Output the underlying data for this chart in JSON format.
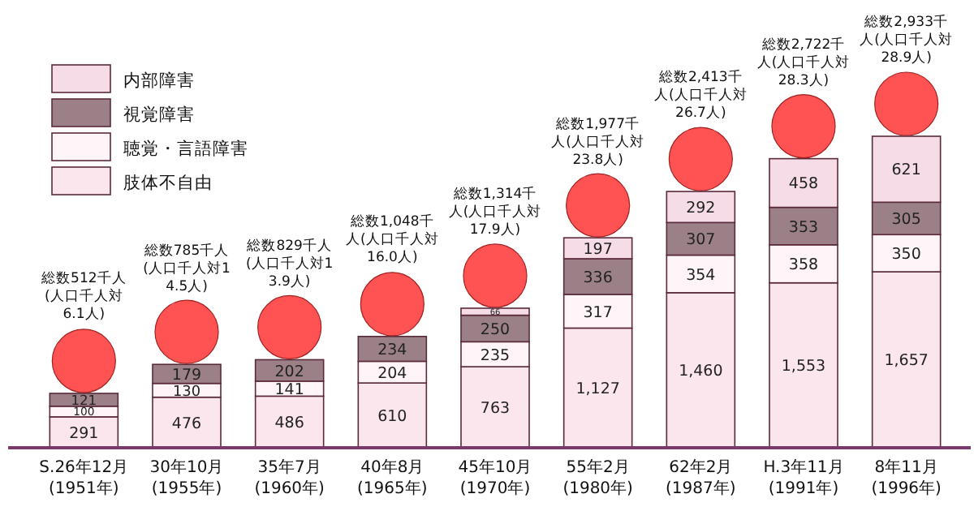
{
  "chart_data": {
    "type": "bar",
    "stacked": true,
    "legend": "top left",
    "categories": [
      "S.26年12月\n(1951年)",
      "30年10月\n(1955年)",
      "35年7月\n(1960年)",
      "40年8月\n(1965年)",
      "45年10月\n(1970年)",
      "55年2月\n(1980年)",
      "62年2月\n(1987年)",
      "H.3年11月\n(1991年)",
      "8年11月\n(1996年)"
    ],
    "series": [
      {
        "name": "肢体不自由",
        "color": "#fbe6ee",
        "values": [
          291,
          476,
          486,
          610,
          763,
          1127,
          1460,
          1553,
          1657
        ],
        "value_labels": [
          "291",
          "476",
          "486",
          "610",
          "763",
          "1,127",
          "1,460",
          "1,553",
          "1,657"
        ]
      },
      {
        "name": "聴覚・言語障害",
        "color": "#fff4f7",
        "values": [
          100,
          130,
          141,
          204,
          235,
          317,
          354,
          358,
          350
        ],
        "value_labels": [
          "100",
          "130",
          "141",
          "204",
          "235",
          "317",
          "354",
          "358",
          "350"
        ]
      },
      {
        "name": "視覚障害",
        "color": "#9c8088",
        "values": [
          121,
          179,
          202,
          234,
          250,
          336,
          307,
          353,
          305
        ],
        "value_labels": [
          "121",
          "179",
          "202",
          "234",
          "250",
          "336",
          "307",
          "353",
          "305"
        ]
      },
      {
        "name": "内部障害",
        "color": "#f6dce6",
        "values": [
          null,
          null,
          null,
          null,
          66,
          197,
          292,
          458,
          621
        ],
        "value_labels": [
          null,
          null,
          null,
          null,
          "66",
          "197",
          "292",
          "458",
          "621"
        ]
      }
    ],
    "annotations": [
      "総数512千人(人口千人対 6.1人)",
      "総数785千人(人口千人対14.5人)",
      "総数829千人(人口千人対13.9人)",
      "総数1,048千人(人口千人対16.0人)",
      "総数1,314千人(人口千人対17.9人)",
      "総数1,977千人(人口千人対23.8人)",
      "総数2,413千人(人口千人対26.7人)",
      "総数2,722千人(人口千人対28.3人)",
      "総数2,933千人(人口千人対28.9人)"
    ]
  }
}
